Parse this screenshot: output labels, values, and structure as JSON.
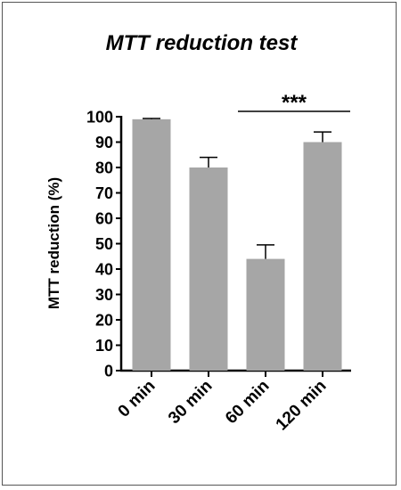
{
  "chart_data": {
    "type": "bar",
    "title": "MTT reduction test",
    "xlabel": "",
    "ylabel": "MTT reduction (%)",
    "categories": [
      "0 min",
      "30 min",
      "60 min",
      "120 min"
    ],
    "values": [
      99,
      80,
      44,
      90
    ],
    "error": [
      0.3,
      4,
      5.5,
      4
    ],
    "ylim": [
      0,
      100
    ],
    "yticks": [
      "0",
      "10",
      "20",
      "30",
      "40",
      "50",
      "60",
      "70",
      "80",
      "90",
      "100"
    ],
    "grid": false,
    "legend": "none",
    "bar_color": "#a6a6a6",
    "significance": {
      "label": "***",
      "from_category": 2,
      "to_category": 3
    }
  }
}
